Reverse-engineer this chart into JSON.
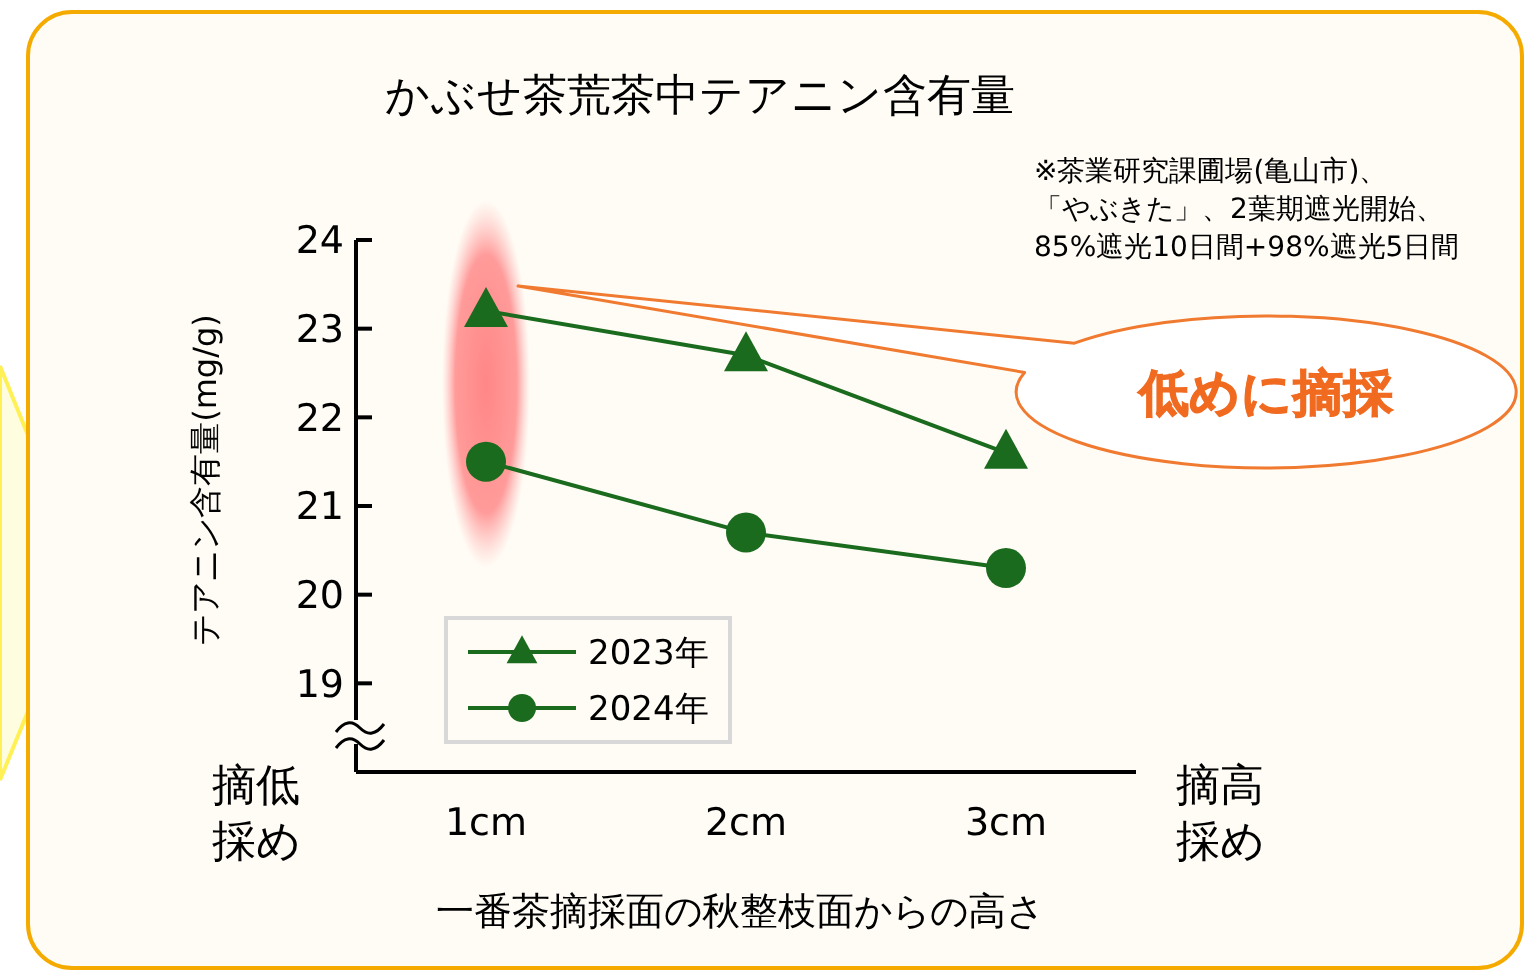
{
  "chart_data": {
    "type": "line",
    "title": "かぶせ茶荒茶中テアニン含有量",
    "xlabel": "一番茶摘採面の秋整枝面からの高さ",
    "ylabel": "テアニン含有量(mg/g)",
    "categories": [
      "1cm",
      "2cm",
      "3cm"
    ],
    "series": [
      {
        "name": "2023年",
        "color": "#1b6b1f",
        "marker": "triangle",
        "values": [
          23.2,
          22.7,
          21.6
        ]
      },
      {
        "name": "2024年",
        "color": "#1b6b1f",
        "marker": "circle",
        "values": [
          21.5,
          20.7,
          20.3
        ]
      }
    ],
    "ylim": [
      18,
      24
    ],
    "yticks": [
      19,
      20,
      21,
      22,
      23,
      24
    ],
    "legend": "bottom left",
    "grid": false,
    "line_style": "solid",
    "annotations": [
      "※茶業研究課圃場(亀山市)、「やぶきた」、2葉期遮光開始、85%遮光10日間+98%遮光5日間",
      "低めに摘採",
      "摘低採め",
      "摘高採め"
    ]
  }
}
